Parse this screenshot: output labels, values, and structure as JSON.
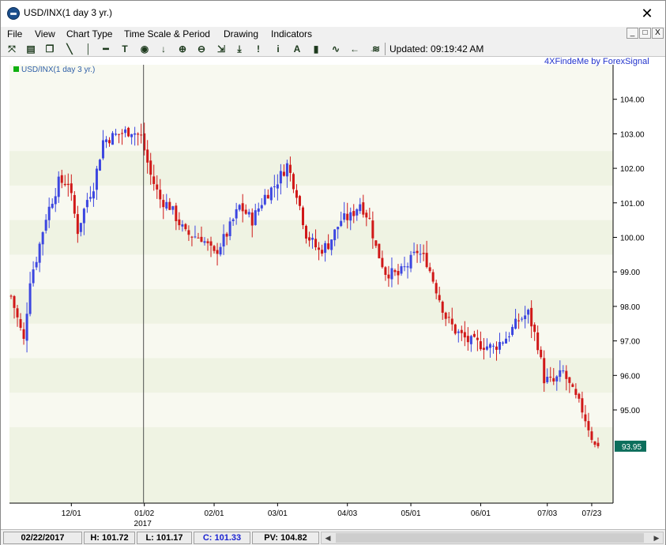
{
  "window": {
    "title": "USD/INX(1 day  3 yr.)",
    "close_glyph": "✕"
  },
  "menu": [
    "File",
    "View",
    "Chart Type",
    "Time Scale & Period",
    "Drawing",
    "Indicators"
  ],
  "mdi_buttons": [
    "_",
    "□",
    "X"
  ],
  "toolbar": {
    "icons": [
      "crosshair-icon",
      "print-icon",
      "copy-icon",
      "trendline-icon",
      "vertical-line-icon",
      "horizontal-line-icon",
      "text-icon",
      "target-icon",
      "arrow-down-icon",
      "zoom-in-icon",
      "zoom-out-icon",
      "fit-icon",
      "download-icon",
      "exclaim-icon",
      "info-icon",
      "font-icon",
      "bar-chart-icon",
      "line-chart-icon",
      "arrow-left-icon",
      "arrow-right-icon",
      "reduce-icon"
    ],
    "glyphs": [
      "⤧",
      "▤",
      "❐",
      "╲",
      "│",
      "━",
      "T",
      "◉",
      "↓",
      "⊕",
      "⊖",
      "⇲",
      "⤓",
      "!",
      "i",
      "A",
      "▮",
      "∿",
      "←",
      "→",
      "≋"
    ],
    "updated_text": "Updated: 09:19:42 AM"
  },
  "chart": {
    "brand": "4XFindeMe by ForexSignal",
    "legend": "USD/INX(1 day  3 yr.)",
    "colors": {
      "up": "#3c46e0",
      "down": "#d01818",
      "band_light": "#f8f9f0",
      "band_dark": "#eff3e3",
      "last_price_bg": "#0c6e5c"
    },
    "last_price": "93.95",
    "year_label": "2017"
  },
  "chart_data": {
    "type": "candlestick",
    "title": "USD/INX(1 day  3 yr.)",
    "ylim": [
      92.3,
      105
    ],
    "yticks": [
      95,
      96,
      97,
      98,
      99,
      100,
      101,
      102,
      103,
      104
    ],
    "ytick_labels": [
      "95.00",
      "96.00",
      "97.00",
      "98.00",
      "99.00",
      "100.00",
      "101.00",
      "102.00",
      "103.00",
      "104.00"
    ],
    "xtick_labels": [
      "12/01",
      "01/02",
      "02/01",
      "03/01",
      "04/03",
      "05/01",
      "06/01",
      "07/03",
      "07/23"
    ],
    "xtick_bar_index": [
      19,
      42,
      64,
      84,
      106,
      126,
      148,
      169,
      183
    ],
    "crosshair_bar_index": 42,
    "crosshair_date": "02/22/2017",
    "grid": false,
    "path_anchors": [
      [
        0,
        98.3
      ],
      [
        4,
        97.0
      ],
      [
        6,
        98.8
      ],
      [
        8,
        99.4
      ],
      [
        11,
        100.6
      ],
      [
        15,
        101.6
      ],
      [
        18,
        101.6
      ],
      [
        21,
        100.2
      ],
      [
        24,
        101.1
      ],
      [
        26,
        101.5
      ],
      [
        29,
        102.8
      ],
      [
        34,
        103.0
      ],
      [
        38,
        103.1
      ],
      [
        41,
        102.9
      ],
      [
        44,
        101.8
      ],
      [
        47,
        101.1
      ],
      [
        50,
        100.9
      ],
      [
        55,
        100.1
      ],
      [
        60,
        100.0
      ],
      [
        64,
        99.5
      ],
      [
        68,
        100.1
      ],
      [
        72,
        100.9
      ],
      [
        76,
        100.5
      ],
      [
        80,
        101.2
      ],
      [
        83,
        101.5
      ],
      [
        87,
        102.1
      ],
      [
        90,
        101.3
      ],
      [
        93,
        100.1
      ],
      [
        97,
        99.6
      ],
      [
        100,
        99.8
      ],
      [
        104,
        100.5
      ],
      [
        107,
        100.6
      ],
      [
        110,
        101.0
      ],
      [
        113,
        100.5
      ],
      [
        115,
        99.7
      ],
      [
        118,
        99.0
      ],
      [
        122,
        98.9
      ],
      [
        125,
        99.2
      ],
      [
        128,
        99.6
      ],
      [
        131,
        99.3
      ],
      [
        134,
        98.5
      ],
      [
        137,
        97.7
      ],
      [
        140,
        97.3
      ],
      [
        144,
        97.0
      ],
      [
        148,
        96.9
      ],
      [
        152,
        96.8
      ],
      [
        156,
        97.1
      ],
      [
        160,
        97.6
      ],
      [
        163,
        97.8
      ],
      [
        166,
        96.9
      ],
      [
        168,
        95.9
      ],
      [
        171,
        95.8
      ],
      [
        174,
        96.1
      ],
      [
        177,
        95.5
      ],
      [
        180,
        95.0
      ],
      [
        182,
        94.5
      ],
      [
        184,
        93.95
      ]
    ],
    "last": 93.95
  },
  "status": {
    "date": "02/22/2017",
    "high": "H: 101.72",
    "low": "L: 101.17",
    "close": "C: 101.33",
    "pv": "PV: 104.82"
  },
  "scrollbar": {
    "left_glyph": "◀",
    "right_glyph": "▶"
  }
}
